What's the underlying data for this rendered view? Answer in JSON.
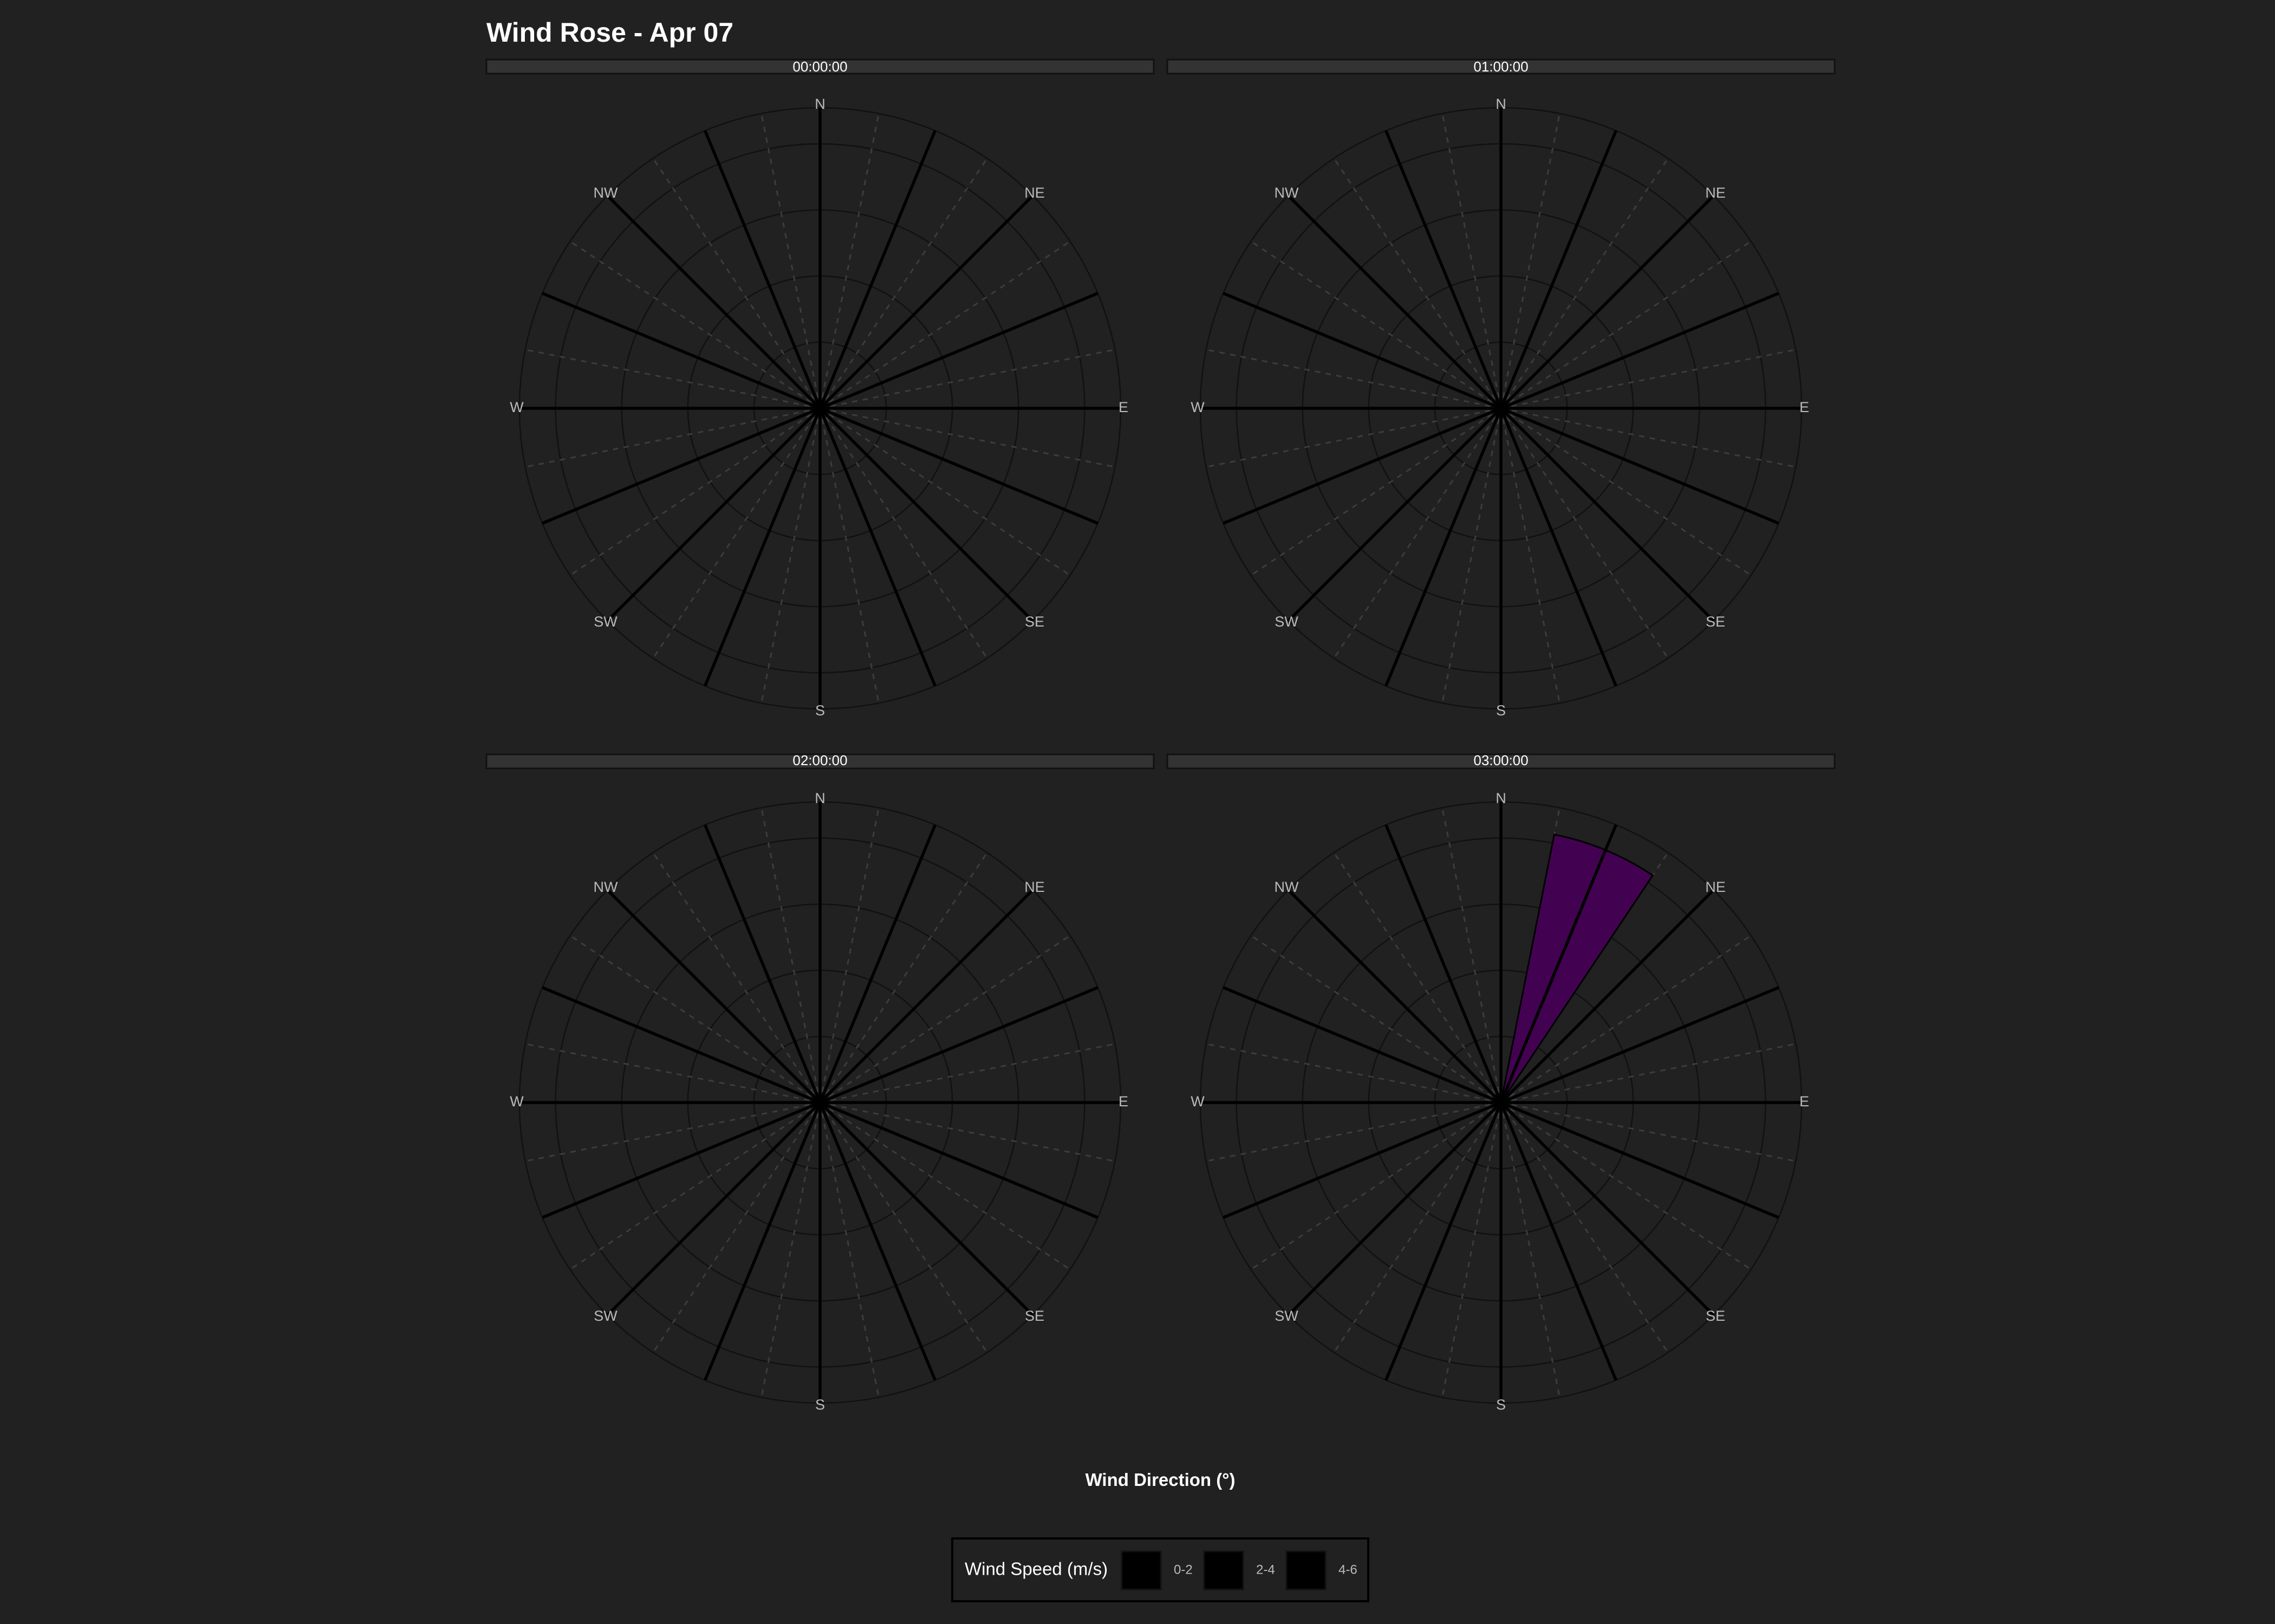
{
  "chart_data": {
    "type": "wind-rose",
    "title": "Wind Rose - Apr 07",
    "xlabel": "Wind Direction (°)",
    "ylabel": "",
    "direction_labels": [
      "N",
      "NE",
      "E",
      "SE",
      "S",
      "SW",
      "W",
      "NW"
    ],
    "direction_bin_count": 16,
    "grid": "on",
    "facets": [
      {
        "label": "00:00:00",
        "bars": []
      },
      {
        "label": "01:00:00",
        "bars": []
      },
      {
        "label": "02:00:00",
        "bars": []
      },
      {
        "label": "03:00:00",
        "bars": [
          {
            "direction_deg": 22.5,
            "speed_bin": "0-2",
            "value": 1
          }
        ]
      }
    ],
    "radial_max": 1.1,
    "legend": {
      "title": "Wind Speed (m/s)",
      "position": "bottom",
      "items": [
        {
          "label": "0-2",
          "color": "#440154"
        },
        {
          "label": "2-4",
          "color": "#414487"
        },
        {
          "label": "4-6",
          "color": "#2A788E"
        }
      ]
    }
  }
}
